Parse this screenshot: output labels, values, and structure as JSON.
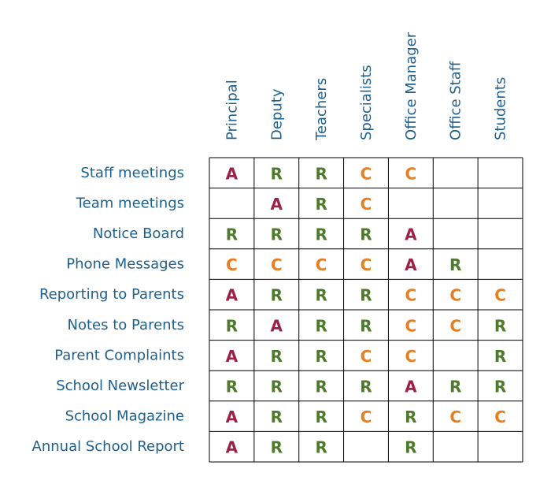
{
  "roles": [
    "Principal",
    "Deputy",
    "Teachers",
    "Specialists",
    "Office Manager",
    "Office Staff",
    "Students"
  ],
  "tasks": [
    {
      "label": "Staff meetings",
      "cells": [
        "A",
        "R",
        "R",
        "C",
        "C",
        "",
        ""
      ]
    },
    {
      "label": "Team meetings",
      "cells": [
        "",
        "A",
        "R",
        "C",
        "",
        "",
        ""
      ]
    },
    {
      "label": "Notice Board",
      "cells": [
        "R",
        "R",
        "R",
        "R",
        "A",
        "",
        ""
      ]
    },
    {
      "label": "Phone Messages",
      "cells": [
        "C",
        "C",
        "C",
        "C",
        "A",
        "R",
        ""
      ]
    },
    {
      "label": "Reporting to Parents",
      "cells": [
        "A",
        "R",
        "R",
        "R",
        "C",
        "C",
        "C"
      ]
    },
    {
      "label": "Notes to Parents",
      "cells": [
        "R",
        "A",
        "R",
        "R",
        "C",
        "C",
        "R"
      ]
    },
    {
      "label": "Parent Complaints",
      "cells": [
        "A",
        "R",
        "R",
        "C",
        "C",
        "",
        "R"
      ]
    },
    {
      "label": "School Newsletter",
      "cells": [
        "R",
        "R",
        "R",
        "R",
        "A",
        "R",
        "R"
      ]
    },
    {
      "label": "School Magazine",
      "cells": [
        "A",
        "R",
        "R",
        "C",
        "R",
        "C",
        "C"
      ]
    },
    {
      "label": "Annual School Report",
      "cells": [
        "A",
        "R",
        "R",
        "",
        "R",
        "",
        ""
      ]
    }
  ],
  "colors": {
    "A": "#9b2245",
    "R": "#4e7a2b",
    "C": "#e67e22",
    "header_text": "#1f5f8b"
  }
}
